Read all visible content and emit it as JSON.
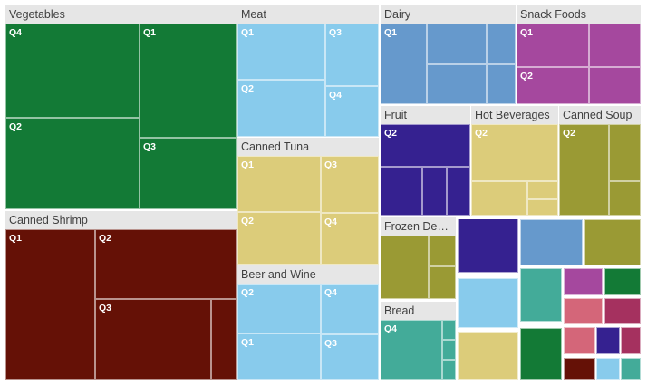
{
  "chart_data": {
    "type": "treemap",
    "title": "",
    "groups": [
      {
        "name": "Vegetables",
        "color": "#137a36",
        "quarters": [
          {
            "label": "Q4",
            "value": 18.5
          },
          {
            "label": "Q1",
            "value": 15.2
          },
          {
            "label": "Q2",
            "value": 18.9
          },
          {
            "label": "Q3",
            "value": 12.3
          }
        ]
      },
      {
        "name": "Canned Shrimp",
        "color": "#651106",
        "quarters": [
          {
            "label": "Q1",
            "value": 16.4
          },
          {
            "label": "Q2",
            "value": 11.8
          },
          {
            "label": "Q3",
            "value": 14.1
          }
        ]
      },
      {
        "name": "Meat",
        "color": "#88cbec",
        "quarters": [
          {
            "label": "Q1",
            "value": 6.0
          },
          {
            "label": "Q3",
            "value": 4.3
          },
          {
            "label": "Q2",
            "value": 5.6
          },
          {
            "label": "Q4",
            "value": 4.7
          }
        ]
      },
      {
        "name": "Canned Tuna",
        "color": "#dccc7a",
        "quarters": [
          {
            "label": "Q1",
            "value": 6.4
          },
          {
            "label": "Q3",
            "value": 4.2
          },
          {
            "label": "Q2",
            "value": 5.4
          },
          {
            "label": "Q4",
            "value": 4.6
          }
        ]
      },
      {
        "name": "Beer and Wine",
        "color": "#88cbec",
        "quarters": [
          {
            "label": "Q2",
            "value": 5.9
          },
          {
            "label": "Q4",
            "value": 4.3
          },
          {
            "label": "Q1",
            "value": 5.3
          },
          {
            "label": "Q3",
            "value": 4.8
          }
        ]
      },
      {
        "name": "Dairy",
        "color": "#6699cc",
        "quarters": [
          {
            "label": "Q1",
            "value": 10.8
          }
        ]
      },
      {
        "name": "Snack Foods",
        "color": "#a5489e",
        "quarters": [
          {
            "label": "Q1",
            "value": 4.9
          },
          {
            "label": "Q2",
            "value": 4.4
          }
        ]
      },
      {
        "name": "Fruit",
        "color": "#352190",
        "quarters": [
          {
            "label": "Q2",
            "value": 8.3
          }
        ]
      },
      {
        "name": "Hot Beverages",
        "color": "#dccc7a",
        "quarters": [
          {
            "label": "Q2",
            "value": 8.3
          }
        ]
      },
      {
        "name": "Canned Soup",
        "color": "#9a9a34",
        "quarters": [
          {
            "label": "Q2",
            "value": 8.1
          }
        ]
      },
      {
        "name": "Frozen Dess...",
        "color": "#9a9a34",
        "quarters": [
          {
            "label": "",
            "value": 4.9
          }
        ]
      },
      {
        "name": "Bread",
        "color": "#43ab99",
        "quarters": [
          {
            "label": "Q4",
            "value": 4.9
          }
        ]
      }
    ],
    "unlabeled_colors": [
      "#352190",
      "#88cbec",
      "#dccc7a",
      "#6699cc",
      "#9a9a34",
      "#43ab99",
      "#137a36",
      "#a5489e",
      "#d46679",
      "#a5315f",
      "#651106"
    ]
  }
}
